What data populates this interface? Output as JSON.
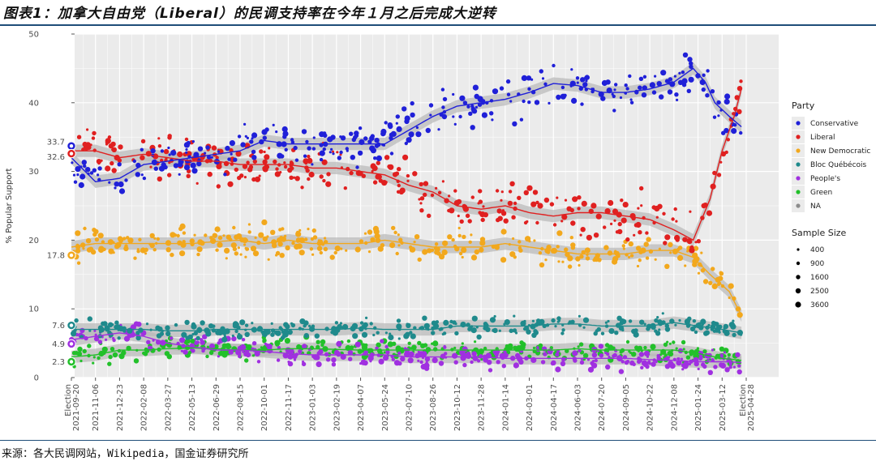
{
  "header": {
    "title": "图表1：加拿大自由党（Liberal）的民调支持率在今年１月之后完成大逆转"
  },
  "footer": {
    "source": "来源：各大民调网站，Wikipedia，国金证券研究所"
  },
  "chart_data": {
    "type": "scatter",
    "ylabel": "% Popular Support",
    "ylim": [
      0,
      50
    ],
    "y_ticks": [
      0,
      10,
      20,
      30,
      40,
      50
    ],
    "x_ticks": [
      "Election 2021-09-20",
      "2021-11-06",
      "2021-12-23",
      "2022-02-08",
      "2022-03-27",
      "2022-05-13",
      "2022-06-29",
      "2022-08-15",
      "2022-10-01",
      "2022-11-17",
      "2023-01-03",
      "2023-02-19",
      "2023-04-07",
      "2023-05-24",
      "2023-07-10",
      "2023-08-26",
      "2023-10-12",
      "2023-11-28",
      "2024-01-14",
      "2024-03-01",
      "2024-04-17",
      "2024-06-03",
      "2024-07-20",
      "2024-09-05",
      "2024-10-22",
      "2024-12-08",
      "2025-01-24",
      "2025-03-12",
      "Election 2025-04-28"
    ],
    "election_results": [
      {
        "party": "Conservative",
        "value": 33.7
      },
      {
        "party": "Liberal",
        "value": 32.6
      },
      {
        "party": "New Democratic",
        "value": 17.8
      },
      {
        "party": "Bloc Québécois",
        "value": 7.6
      },
      {
        "party": "People's",
        "value": 4.9
      },
      {
        "party": "Green",
        "value": 2.3
      }
    ],
    "series": [
      {
        "name": "Conservative",
        "color": "#2020d8",
        "trend": [
          [
            0,
            32
          ],
          [
            1,
            28.5
          ],
          [
            2,
            29
          ],
          [
            3,
            31
          ],
          [
            4,
            31.5
          ],
          [
            5,
            32
          ],
          [
            6,
            32.5
          ],
          [
            7,
            33
          ],
          [
            8,
            34.5
          ],
          [
            9,
            34
          ],
          [
            10,
            34
          ],
          [
            11,
            34
          ],
          [
            12,
            34
          ],
          [
            13,
            34
          ],
          [
            14,
            36
          ],
          [
            15,
            38
          ],
          [
            16,
            39.5
          ],
          [
            17,
            40
          ],
          [
            18,
            40.5
          ],
          [
            19,
            41.5
          ],
          [
            20,
            42.8
          ],
          [
            21,
            42.5
          ],
          [
            22,
            41.5
          ],
          [
            23,
            41.5
          ],
          [
            24,
            42
          ],
          [
            25,
            43
          ],
          [
            25.8,
            45
          ],
          [
            26.3,
            43
          ],
          [
            26.7,
            40
          ],
          [
            27.3,
            38
          ],
          [
            27.8,
            36.5
          ]
        ]
      },
      {
        "name": "Liberal",
        "color": "#e02020",
        "trend": [
          [
            0,
            33
          ],
          [
            1,
            33
          ],
          [
            2,
            32
          ],
          [
            3,
            32.5
          ],
          [
            4,
            32
          ],
          [
            5,
            31.5
          ],
          [
            6,
            31.5
          ],
          [
            7,
            31
          ],
          [
            8,
            31
          ],
          [
            9,
            31
          ],
          [
            10,
            30.5
          ],
          [
            11,
            30.5
          ],
          [
            12,
            30
          ],
          [
            13,
            29.5
          ],
          [
            14,
            28
          ],
          [
            15,
            27
          ],
          [
            16,
            25
          ],
          [
            17,
            24.5
          ],
          [
            18,
            25
          ],
          [
            19,
            24
          ],
          [
            20,
            23.5
          ],
          [
            21,
            24
          ],
          [
            22,
            24
          ],
          [
            23,
            23.5
          ],
          [
            24,
            23
          ],
          [
            25,
            21.5
          ],
          [
            25.8,
            20
          ],
          [
            26.5,
            26
          ],
          [
            27,
            33
          ],
          [
            27.5,
            38
          ],
          [
            27.8,
            42
          ]
        ]
      },
      {
        "name": "New Democratic",
        "color": "#f2a81d",
        "trend": [
          [
            0,
            19
          ],
          [
            1,
            19.5
          ],
          [
            2,
            19.5
          ],
          [
            3,
            19.5
          ],
          [
            4,
            19.5
          ],
          [
            5,
            19.5
          ],
          [
            6,
            19.8
          ],
          [
            7,
            20
          ],
          [
            8,
            19.5
          ],
          [
            9,
            20
          ],
          [
            10,
            19.5
          ],
          [
            11,
            19.5
          ],
          [
            12,
            19.5
          ],
          [
            13,
            20
          ],
          [
            14,
            19.5
          ],
          [
            15,
            19
          ],
          [
            16,
            19
          ],
          [
            17,
            19
          ],
          [
            18,
            19.5
          ],
          [
            19,
            19
          ],
          [
            20,
            18.5
          ],
          [
            21,
            18
          ],
          [
            22,
            18
          ],
          [
            23,
            18
          ],
          [
            24,
            18.5
          ],
          [
            25,
            18.5
          ],
          [
            25.8,
            17.5
          ],
          [
            26.5,
            15
          ],
          [
            27.3,
            12.5
          ],
          [
            27.8,
            9
          ]
        ]
      },
      {
        "name": "Bloc Québécois",
        "color": "#1f8a8c",
        "trend": [
          [
            0,
            7
          ],
          [
            1,
            7
          ],
          [
            2,
            7
          ],
          [
            3,
            7
          ],
          [
            4,
            6.8
          ],
          [
            5,
            6.8
          ],
          [
            6,
            7
          ],
          [
            7,
            7
          ],
          [
            8,
            7
          ],
          [
            9,
            7
          ],
          [
            10,
            7
          ],
          [
            11,
            7
          ],
          [
            12,
            7.2
          ],
          [
            13,
            7
          ],
          [
            14,
            7
          ],
          [
            15,
            7
          ],
          [
            16,
            7.5
          ],
          [
            17,
            7.5
          ],
          [
            18,
            7.5
          ],
          [
            19,
            7.5
          ],
          [
            20,
            7.8
          ],
          [
            21,
            7.8
          ],
          [
            22,
            7.5
          ],
          [
            23,
            7.5
          ],
          [
            24,
            7.5
          ],
          [
            25,
            8
          ],
          [
            26,
            7.5
          ],
          [
            27,
            7
          ],
          [
            27.8,
            6.5
          ]
        ]
      },
      {
        "name": "People's",
        "color": "#a030e0",
        "trend": [
          [
            0,
            5.5
          ],
          [
            1,
            6
          ],
          [
            2,
            6.5
          ],
          [
            3,
            6
          ],
          [
            4,
            5
          ],
          [
            5,
            4.5
          ],
          [
            6,
            4
          ],
          [
            7,
            4
          ],
          [
            8,
            3.8
          ],
          [
            9,
            3.5
          ],
          [
            10,
            3.3
          ],
          [
            11,
            3.3
          ],
          [
            12,
            3.3
          ],
          [
            13,
            3.3
          ],
          [
            14,
            3
          ],
          [
            15,
            3
          ],
          [
            16,
            3
          ],
          [
            17,
            3
          ],
          [
            18,
            2.8
          ],
          [
            19,
            2.8
          ],
          [
            20,
            2.8
          ],
          [
            21,
            2.8
          ],
          [
            22,
            2.8
          ],
          [
            23,
            2.8
          ],
          [
            24,
            2.6
          ],
          [
            25,
            2.5
          ],
          [
            26,
            2.3
          ],
          [
            27,
            2.3
          ],
          [
            27.8,
            2.2
          ]
        ]
      },
      {
        "name": "Green",
        "color": "#22c02a",
        "trend": [
          [
            0,
            3
          ],
          [
            1,
            3.3
          ],
          [
            2,
            4
          ],
          [
            3,
            4
          ],
          [
            4,
            4.2
          ],
          [
            5,
            4.3
          ],
          [
            6,
            4.2
          ],
          [
            7,
            4
          ],
          [
            8,
            4
          ],
          [
            9,
            4.2
          ],
          [
            10,
            4.2
          ],
          [
            11,
            4.1
          ],
          [
            12,
            4
          ],
          [
            13,
            4
          ],
          [
            14,
            4
          ],
          [
            15,
            4
          ],
          [
            16,
            4
          ],
          [
            17,
            4
          ],
          [
            18,
            4
          ],
          [
            19,
            4
          ],
          [
            20,
            4
          ],
          [
            21,
            4.2
          ],
          [
            22,
            4
          ],
          [
            23,
            4
          ],
          [
            24,
            4
          ],
          [
            25,
            4
          ],
          [
            26,
            3.5
          ],
          [
            27,
            2.8
          ],
          [
            27.8,
            2.5
          ]
        ]
      }
    ],
    "legend": {
      "party_title": "Party",
      "parties": [
        "Conservative",
        "Liberal",
        "New Democratic",
        "Bloc Québécois",
        "People's",
        "Green",
        "NA"
      ],
      "party_colors": [
        "#2020d8",
        "#e02020",
        "#f2a81d",
        "#1f8a8c",
        "#a030e0",
        "#22c02a",
        "#8c8c8c"
      ],
      "size_title": "Sample Size",
      "sizes": [
        "400",
        "900",
        "1600",
        "2500",
        "3600"
      ]
    }
  }
}
